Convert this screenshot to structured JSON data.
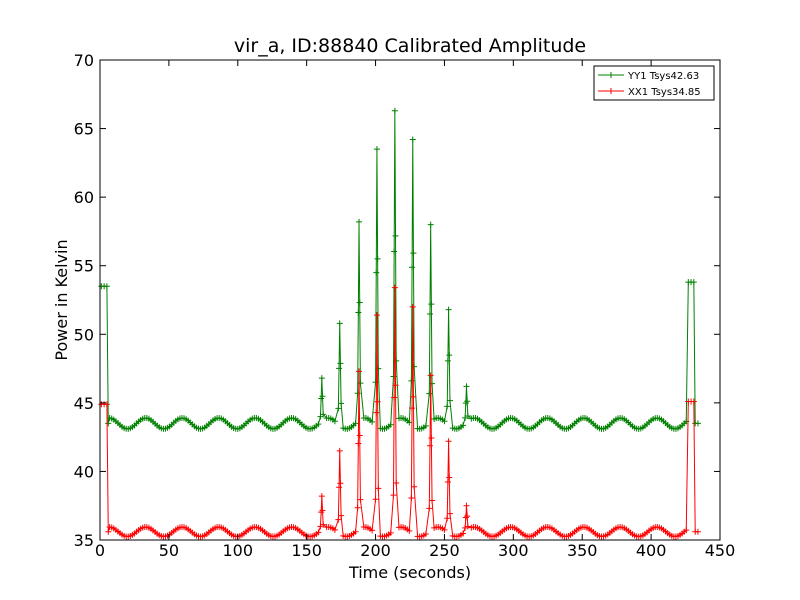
{
  "chart_data": {
    "type": "line",
    "title": "vir_a, ID:88840 Calibrated Amplitude",
    "xlabel": "Time (seconds)",
    "ylabel": "Power in Kelvin",
    "xlim": [
      0,
      450
    ],
    "ylim": [
      35,
      70
    ],
    "x_ticks": [
      "0",
      "50",
      "100",
      "150",
      "200",
      "250",
      "300",
      "350",
      "400",
      "450"
    ],
    "y_ticks": [
      "35",
      "40",
      "45",
      "50",
      "55",
      "60",
      "65",
      "70"
    ],
    "grid": false,
    "legend_position": "top-right",
    "series": [
      {
        "name": "YY1 Tsys42.63",
        "color": "#008000",
        "baseline": 43.5,
        "ripple": 0.4,
        "start_level": 53.5,
        "end_level": 53.8,
        "peaks": [
          {
            "x": 161,
            "y": 46.8
          },
          {
            "x": 174,
            "y": 50.8
          },
          {
            "x": 188,
            "y": 58.2
          },
          {
            "x": 201,
            "y": 63.5
          },
          {
            "x": 214,
            "y": 66.3
          },
          {
            "x": 227,
            "y": 64.2
          },
          {
            "x": 240,
            "y": 58.0
          },
          {
            "x": 253,
            "y": 51.8
          },
          {
            "x": 266,
            "y": 46.2
          }
        ]
      },
      {
        "name": "XX1 Tsys34.85",
        "color": "#ff0000",
        "baseline": 35.6,
        "ripple": 0.35,
        "start_level": 44.9,
        "end_level": 45.1,
        "peaks": [
          {
            "x": 161,
            "y": 38.2
          },
          {
            "x": 174,
            "y": 41.5
          },
          {
            "x": 188,
            "y": 47.3
          },
          {
            "x": 201,
            "y": 51.4
          },
          {
            "x": 214,
            "y": 53.4
          },
          {
            "x": 227,
            "y": 52.0
          },
          {
            "x": 240,
            "y": 47.0
          },
          {
            "x": 253,
            "y": 42.2
          },
          {
            "x": 266,
            "y": 37.5
          }
        ]
      }
    ]
  }
}
